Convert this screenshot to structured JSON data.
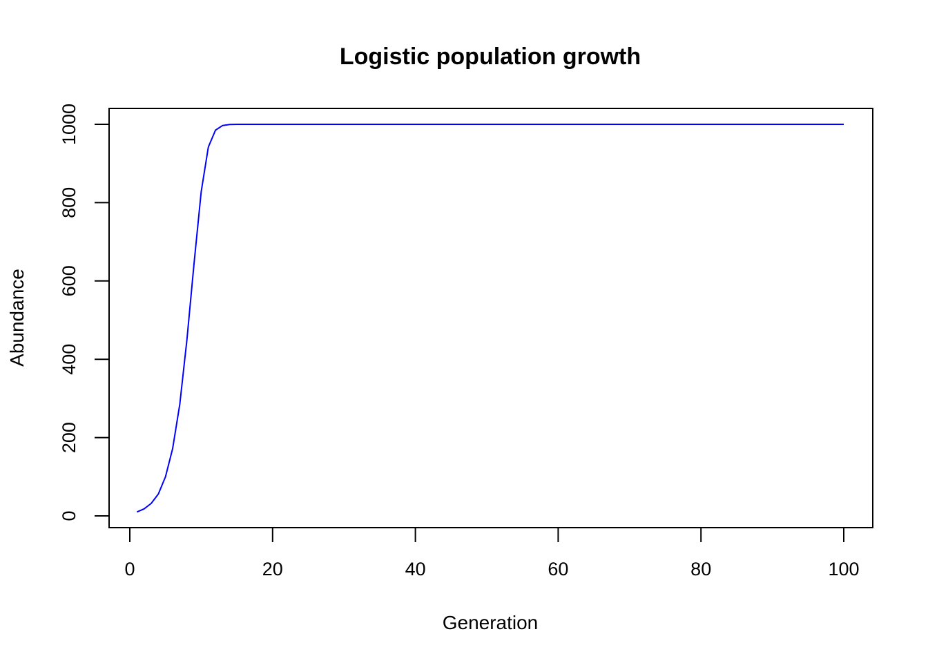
{
  "chart_data": {
    "type": "line",
    "title": "Logistic population growth",
    "xlabel": "Generation",
    "ylabel": "Abundance",
    "xlim": [
      0,
      100
    ],
    "ylim": [
      0,
      1000
    ],
    "x_ticks": [
      0,
      20,
      40,
      60,
      80,
      100
    ],
    "y_ticks": [
      0,
      200,
      400,
      600,
      800,
      1000
    ],
    "x_tick_labels": [
      "0",
      "20",
      "40",
      "60",
      "80",
      "100"
    ],
    "y_tick_labels": [
      "0",
      "200",
      "400",
      "600",
      "800",
      "1000"
    ],
    "grid": false,
    "line_color": "#0000ff",
    "series": [
      {
        "x": [
          1,
          2,
          3,
          4,
          5,
          6,
          7,
          8,
          9,
          10,
          11,
          12,
          13,
          14,
          15,
          100
        ],
        "y": [
          10,
          18,
          32,
          56,
          100,
          172,
          285,
          450,
          645,
          828,
          942,
          985,
          997,
          999.5,
          1000,
          1000
        ]
      }
    ]
  }
}
